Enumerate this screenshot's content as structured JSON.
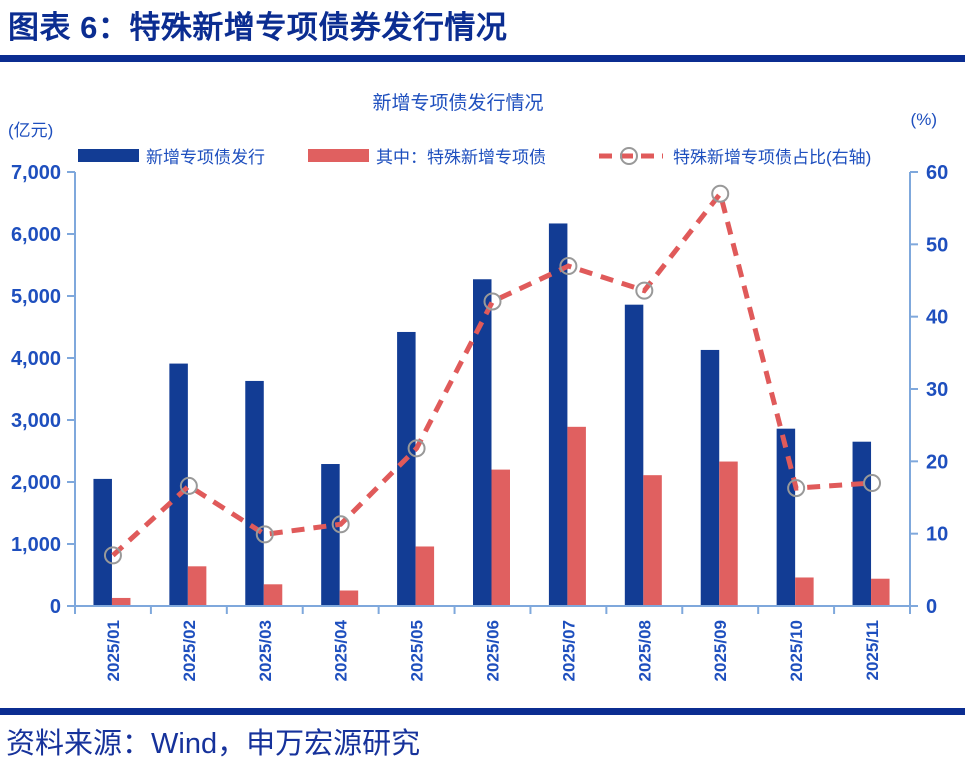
{
  "header": {
    "title": "图表 6：特殊新增专项债券发行情况"
  },
  "source": {
    "text": "资料来源：Wind，申万宏源研究"
  },
  "chart": {
    "title": "新增专项债发行情况",
    "left_axis_unit": "(亿元)",
    "right_axis_unit": "(%)",
    "legend": [
      {
        "label": "新增专项债发行",
        "type": "bar",
        "color": "#123C94"
      },
      {
        "label": "其中：特殊新增专项债",
        "type": "bar",
        "color": "#E06060"
      },
      {
        "label": "特殊新增专项债占比(右轴)",
        "type": "dashed-line",
        "color": "#E05A5A",
        "marker_color": "#999999"
      }
    ],
    "colors": {
      "axis_line": "#7FA8DC",
      "tick_text": "#1E4FBE",
      "header_navy": "#0B2D91"
    }
  },
  "chart_data": {
    "type": "bar",
    "title": "新增专项债发行情况",
    "categories": [
      "2025/01",
      "2025/02",
      "2025/03",
      "2025/04",
      "2025/05",
      "2025/06",
      "2025/07",
      "2025/08",
      "2025/09",
      "2025/10",
      "2025/11"
    ],
    "series": [
      {
        "name": "新增专项债发行",
        "type": "bar",
        "axis": "left",
        "color": "#123C94",
        "values": [
          2050,
          3910,
          3630,
          2290,
          4420,
          5270,
          6170,
          4860,
          4130,
          2860,
          2650
        ]
      },
      {
        "name": "其中：特殊新增专项债",
        "type": "bar",
        "axis": "left",
        "color": "#E06060",
        "values": [
          130,
          640,
          350,
          250,
          960,
          2200,
          2890,
          2110,
          2330,
          460,
          440
        ]
      },
      {
        "name": "特殊新增专项债占比(右轴)",
        "type": "line",
        "style": "dashed",
        "marker": "open-circle",
        "axis": "right",
        "color": "#E05A5A",
        "marker_color": "#999999",
        "values": [
          7.0,
          16.6,
          9.9,
          11.3,
          21.8,
          42.1,
          47.0,
          43.6,
          57.0,
          16.3,
          17.0
        ]
      }
    ],
    "ylabel": "(亿元)",
    "y2label": "(%)",
    "ylim": [
      0,
      7000
    ],
    "ystep": 1000,
    "y2lim": [
      0,
      60
    ],
    "y2step": 10,
    "grid": false,
    "legend_position": "top"
  }
}
